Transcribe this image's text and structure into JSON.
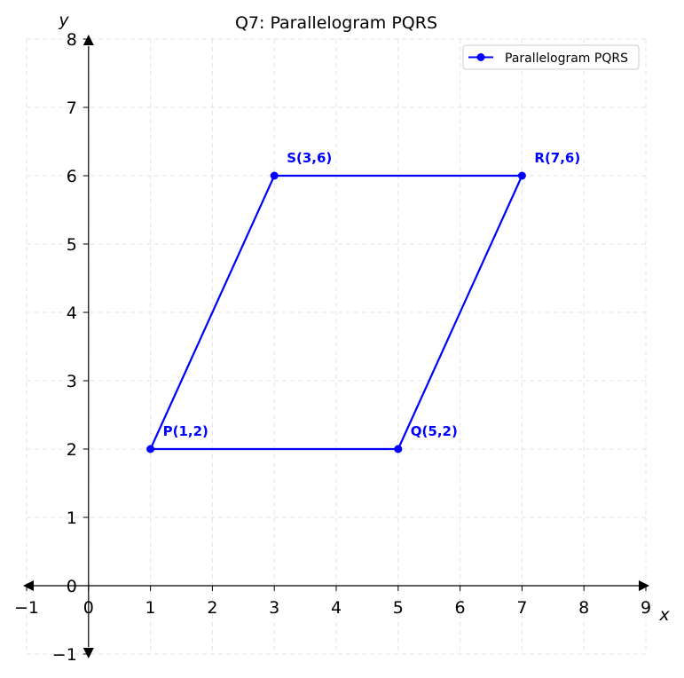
{
  "chart_data": {
    "type": "line",
    "title": "Q7: Parallelogram PQRS",
    "xlabel": "x",
    "ylabel": "y",
    "xlim": [
      -1,
      9
    ],
    "ylim": [
      -1,
      8
    ],
    "xticks": [
      -1,
      0,
      1,
      2,
      3,
      4,
      5,
      6,
      7,
      8,
      9
    ],
    "yticks": [
      -1,
      0,
      1,
      2,
      3,
      4,
      5,
      6,
      7,
      8
    ],
    "xtick_labels": [
      "−1",
      "0",
      "1",
      "2",
      "3",
      "4",
      "5",
      "6",
      "7",
      "8",
      "9"
    ],
    "ytick_labels": [
      "−1",
      "0",
      "1",
      "2",
      "3",
      "4",
      "5",
      "6",
      "7",
      "8"
    ],
    "grid": true,
    "legend_position": "top-right",
    "series": [
      {
        "name": "Parallelogram PQRS",
        "color": "#0000ff",
        "closed": true,
        "points": [
          {
            "x": 1,
            "y": 2,
            "label": "P(1,2)"
          },
          {
            "x": 5,
            "y": 2,
            "label": "Q(5,2)"
          },
          {
            "x": 7,
            "y": 6,
            "label": "R(7,6)"
          },
          {
            "x": 3,
            "y": 6,
            "label": "S(3,6)"
          }
        ]
      }
    ]
  }
}
